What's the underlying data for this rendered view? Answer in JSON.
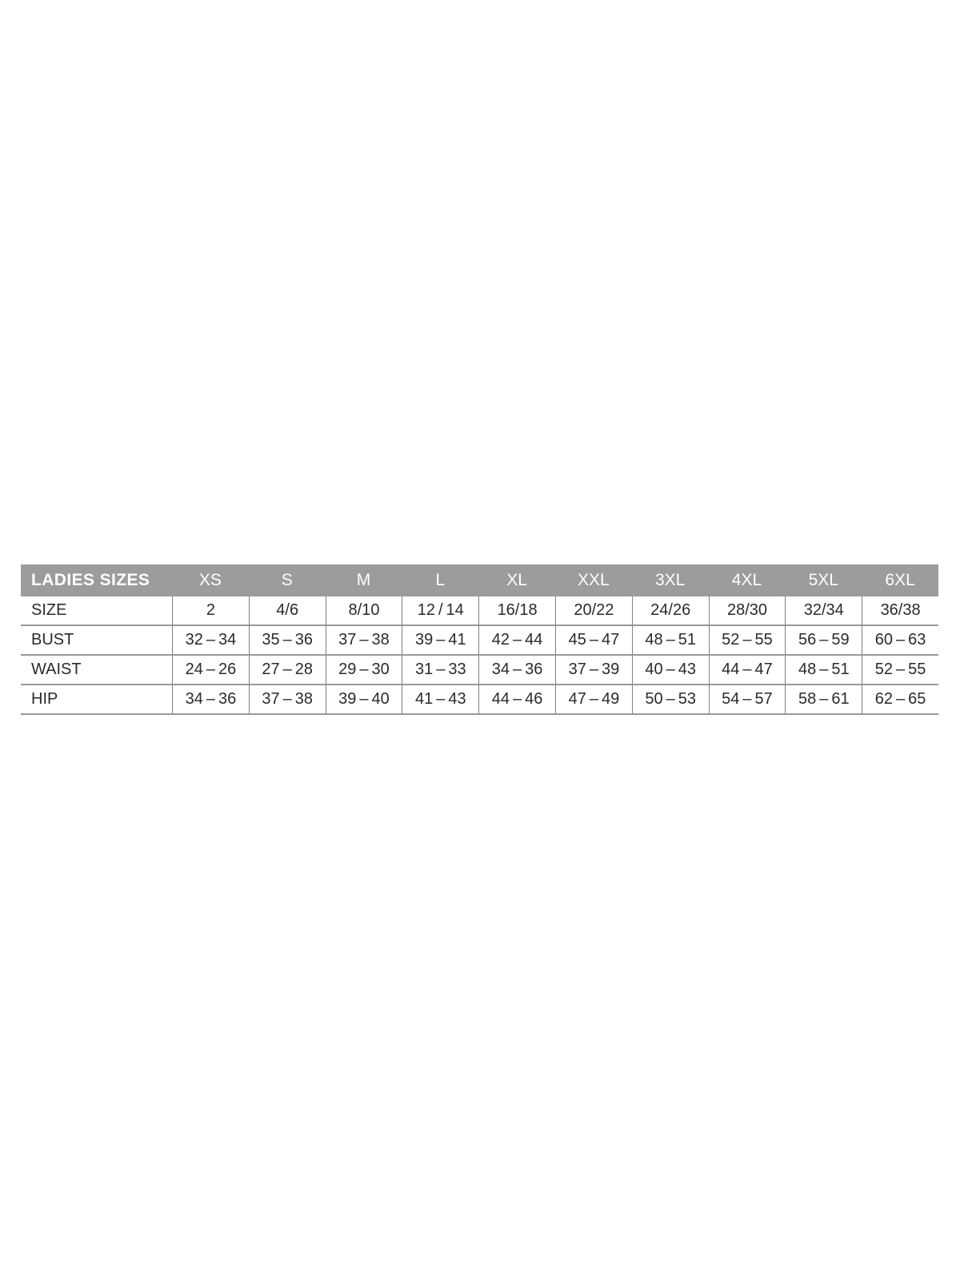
{
  "table": {
    "title": "LADIES SIZES",
    "columns": [
      "XS",
      "S",
      "M",
      "L",
      "XL",
      "XXL",
      "3XL",
      "4XL",
      "5XL",
      "6XL"
    ],
    "rows": [
      {
        "label": "SIZE",
        "values": [
          "2",
          "4/6",
          "8/10",
          "12 / 14",
          "16/18",
          "20/22",
          "24/26",
          "28/30",
          "32/34",
          "36/38"
        ]
      },
      {
        "label": "BUST",
        "values": [
          "32 – 34",
          "35 – 36",
          "37 – 38",
          "39 – 41",
          "42 – 44",
          "45 – 47",
          "48 – 51",
          "52 – 55",
          "56 – 59",
          "60 – 63"
        ]
      },
      {
        "label": "WAIST",
        "values": [
          "24 – 26",
          "27 – 28",
          "29 – 30",
          "31 – 33",
          "34 – 36",
          "37 – 39",
          "40 – 43",
          "44 – 47",
          "48 – 51",
          "52 – 55"
        ]
      },
      {
        "label": "HIP",
        "values": [
          "34 – 36",
          "37 – 38",
          "39 – 40",
          "41 – 43",
          "44 – 46",
          "47 – 49",
          "50 – 53",
          "54 – 57",
          "58 – 61",
          "62 – 65"
        ]
      }
    ],
    "colors": {
      "header_bg": "#9b9c9e",
      "header_text": "#ffffff",
      "body_text": "#2b2b2d",
      "line_horizontal": "#97999c",
      "line_vertical": "#808285"
    }
  }
}
